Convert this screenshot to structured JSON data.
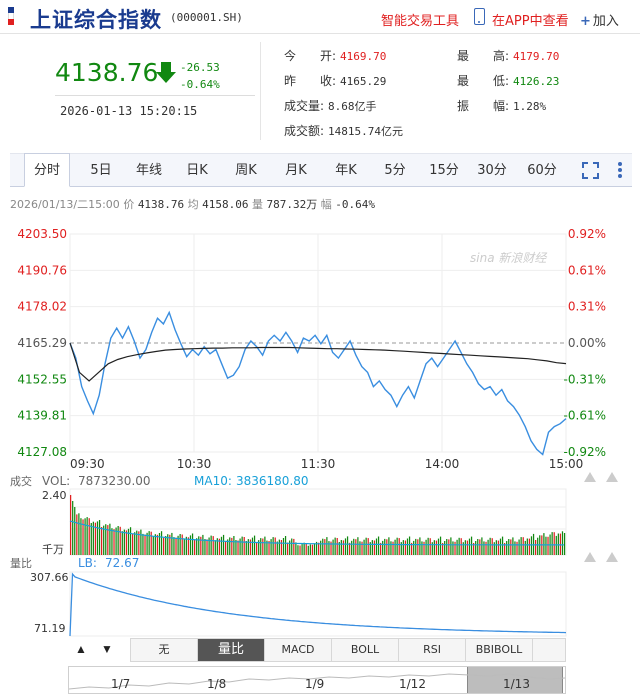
{
  "header": {
    "title": "上证综合指数",
    "code": "(000001.SH)",
    "smart_tool": "智能交易工具",
    "app_view": "在APP中查看",
    "add_label": "加入",
    "flag_colors": [
      "#1a3b8f",
      "#ffffff",
      "#e02020"
    ]
  },
  "quote": {
    "price": "4138.76",
    "change": "-26.53",
    "change_pct": "-0.64%",
    "datetime": "2026-01-13 15:20:15",
    "stats": [
      {
        "label": "今　　开:",
        "value": "4169.70",
        "color": "red"
      },
      {
        "label": "最　　高:",
        "value": "4179.70",
        "color": "red"
      },
      {
        "label": "昨　　收:",
        "value": "4165.29",
        "color": "plain"
      },
      {
        "label": "最　　低:",
        "value": "4126.23",
        "color": "green"
      },
      {
        "label": "成交量:",
        "value": "8.68亿手",
        "color": "plain"
      },
      {
        "label": "振　　幅:",
        "value": "1.28%",
        "color": "plain"
      },
      {
        "label": "成交额:",
        "value": "14815.74亿元",
        "color": "plain"
      }
    ]
  },
  "tabs": [
    {
      "label": "分时",
      "active": true
    },
    {
      "label": "5日"
    },
    {
      "label": "年线"
    },
    {
      "label": "日K"
    },
    {
      "label": "周K"
    },
    {
      "label": "月K"
    },
    {
      "label": "年K"
    },
    {
      "label": "5分"
    },
    {
      "label": "15分"
    },
    {
      "label": "30分"
    },
    {
      "label": "60分"
    }
  ],
  "info_line": {
    "date": "2026/01/13/二15:00",
    "price_label": "价",
    "price": "4138.76",
    "avg_label": "均",
    "avg": "4158.06",
    "vol_label": "量",
    "vol": "787.32万",
    "amp_label": "幅",
    "amp": "-0.64%"
  },
  "watermark": "sina 新浪财经",
  "chart_data": [
    {
      "type": "line",
      "y_left_ticks": [
        "4203.50",
        "4190.76",
        "4178.02",
        "4165.29",
        "4152.55",
        "4139.81",
        "4127.08"
      ],
      "y_right_ticks": [
        "0.92%",
        "0.61%",
        "0.31%",
        "0.00%",
        "-0.31%",
        "-0.61%",
        "-0.92%"
      ],
      "x_ticks": [
        "09:30",
        "10:30",
        "11:30",
        "14:00",
        "15:00"
      ],
      "ylim": [
        4127.08,
        4203.5
      ],
      "prev_close": 4165.29,
      "series": [
        {
          "values": [
            4165.3,
            4160.0,
            4150.0,
            4145.0,
            4140.5,
            4147.0,
            4158.0,
            4167.0,
            4170.5,
            4167.0,
            4171.0,
            4166.0,
            4160.0,
            4163.0,
            4169.0,
            4174.0,
            4172.0,
            4176.0,
            4170.0,
            4165.0,
            4160.5,
            4163.0,
            4161.0,
            4164.0,
            4161.5,
            4163.0,
            4158.0,
            4153.0,
            4154.0,
            4157.0,
            4163.0,
            4166.0,
            4164.0,
            4161.0,
            4166.0,
            4168.0,
            4166.0,
            4169.0,
            4166.0,
            4162.0,
            4167.0,
            4166.0,
            4168.0,
            4165.0,
            4168.0,
            4162.0,
            4160.0,
            4163.0,
            4166.0,
            4161.0,
            4157.0,
            4155.0,
            4150.0,
            4152.0,
            4149.0,
            4147.0,
            4143.0,
            4147.0,
            4150.0,
            4146.0,
            4152.0,
            4158.0,
            4160.0,
            4157.0,
            4160.0,
            4163.0,
            4166.0,
            4162.0,
            4158.0,
            4155.0,
            4151.0,
            4149.0,
            4150.0,
            4147.0,
            4149.0,
            4145.0,
            4143.0,
            4140.0,
            4136.0,
            4131.0,
            4128.0,
            4126.2,
            4134.0,
            4136.0,
            4137.0,
            4138.8
          ]
        },
        {
          "values": [
            4165.3,
            4155.0,
            4152.0,
            4155.0,
            4158.0,
            4159.5,
            4160.5,
            4161.2,
            4161.8,
            4162.3,
            4162.8,
            4163.0,
            4163.2,
            4163.3,
            4163.4,
            4163.5,
            4163.5,
            4163.6,
            4163.6,
            4163.6,
            4163.7,
            4163.7,
            4163.7,
            4163.7,
            4163.6,
            4163.5,
            4163.4,
            4163.3,
            4163.3,
            4163.2,
            4163.1,
            4163.0,
            4162.9,
            4162.8,
            4162.6,
            4162.4,
            4162.2,
            4162.0,
            4161.8,
            4161.6,
            4161.4,
            4161.2,
            4161.0,
            4160.8,
            4160.6,
            4160.4,
            4160.2,
            4160.0,
            4159.8,
            4159.4,
            4159.0,
            4158.4,
            4158.06
          ]
        }
      ]
    },
    {
      "type": "bar",
      "title": "成交",
      "legend": [
        {
          "label": "VOL:",
          "value": "7873230.00"
        },
        {
          "label": "MA10:",
          "value": "3836180.80"
        }
      ],
      "y_top_label": "2.40",
      "y_unit_label": "千万"
    },
    {
      "type": "line",
      "title": "量比",
      "legend": [
        {
          "label": "LB:",
          "value": "72.67"
        }
      ],
      "y_ticks": [
        "307.66",
        "71.19"
      ]
    }
  ],
  "indicator_tabs": [
    {
      "label": "无"
    },
    {
      "label": "量比",
      "active": true
    },
    {
      "label": "MACD"
    },
    {
      "label": "BOLL"
    },
    {
      "label": "RSI"
    },
    {
      "label": "BBIBOLL"
    }
  ],
  "timeline_labels": [
    "1/7",
    "1/8",
    "1/9",
    "1/12",
    "1/13"
  ],
  "colors": {
    "up": "#e02020",
    "down": "#118811",
    "price_line": "#3a8ee0",
    "avg_line": "#222222",
    "ma_line": "#18a0d8",
    "accent": "#1a3b8f"
  }
}
